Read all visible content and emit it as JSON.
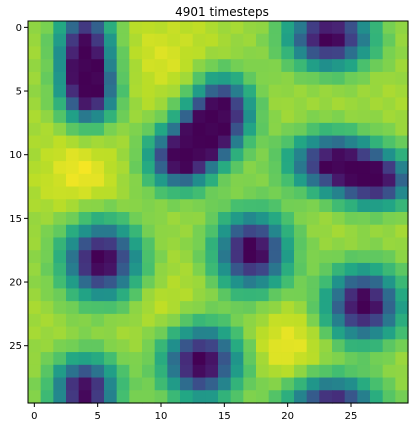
{
  "chart_data": {
    "type": "heatmap",
    "title": "4901 timesteps",
    "xlabel": "",
    "ylabel": "",
    "rows": 30,
    "cols": 30,
    "x_range": [
      0,
      29
    ],
    "y_range": [
      0,
      29
    ],
    "x_ticks": [
      0,
      5,
      10,
      15,
      20,
      25
    ],
    "y_ticks": [
      0,
      5,
      10,
      15,
      20,
      25
    ],
    "y_axis_inverted": true,
    "colormap": "viridis",
    "value_range": [
      0,
      1
    ],
    "grid": false,
    "legend": "none",
    "blobs": [
      {
        "row": 1.5,
        "col": 4.0,
        "row_spread": 2.2,
        "col_spread": 1.4,
        "strength": 1.0
      },
      {
        "row": 5.0,
        "col": 4.3,
        "row_spread": 1.7,
        "col_spread": 1.4,
        "strength": 1.0
      },
      {
        "row": 0.8,
        "col": 23.3,
        "row_spread": 1.6,
        "col_spread": 2.2,
        "strength": 1.05
      },
      {
        "row": 6.5,
        "col": 14.8,
        "row_spread": 1.8,
        "col_spread": 1.6,
        "strength": 0.95
      },
      {
        "row": 10.3,
        "col": 11.5,
        "row_spread": 1.6,
        "col_spread": 1.7,
        "strength": 1.0
      },
      {
        "row": 8.5,
        "col": 13.5,
        "row_spread": 1.5,
        "col_spread": 1.5,
        "strength": 0.85
      },
      {
        "row": 10.6,
        "col": 23.5,
        "row_spread": 1.5,
        "col_spread": 2.3,
        "strength": 0.95
      },
      {
        "row": 12.0,
        "col": 27.0,
        "row_spread": 1.4,
        "col_spread": 2.0,
        "strength": 0.95
      },
      {
        "row": 18.3,
        "col": 5.3,
        "row_spread": 2.0,
        "col_spread": 2.0,
        "strength": 1.05
      },
      {
        "row": 17.6,
        "col": 17.2,
        "row_spread": 2.0,
        "col_spread": 1.9,
        "strength": 1.05
      },
      {
        "row": 21.8,
        "col": 26.0,
        "row_spread": 1.9,
        "col_spread": 2.0,
        "strength": 1.05
      },
      {
        "row": 26.3,
        "col": 13.2,
        "row_spread": 1.9,
        "col_spread": 2.0,
        "strength": 1.05
      },
      {
        "row": 28.5,
        "col": 4.0,
        "row_spread": 1.7,
        "col_spread": 1.7,
        "strength": 1.0
      },
      {
        "row": 29.5,
        "col": 23.5,
        "row_spread": 1.4,
        "col_spread": 2.4,
        "strength": 0.9
      }
    ],
    "bright_spots": [
      {
        "row": 11.5,
        "col": 3.6,
        "spread": 2.0,
        "strength": 0.12
      },
      {
        "row": 25.0,
        "col": 20.0,
        "spread": 2.0,
        "strength": 0.12
      },
      {
        "row": 2.5,
        "col": 10.5,
        "spread": 2.5,
        "strength": 0.08
      },
      {
        "row": 22.0,
        "col": 10.5,
        "spread": 2.0,
        "strength": 0.06
      }
    ]
  }
}
